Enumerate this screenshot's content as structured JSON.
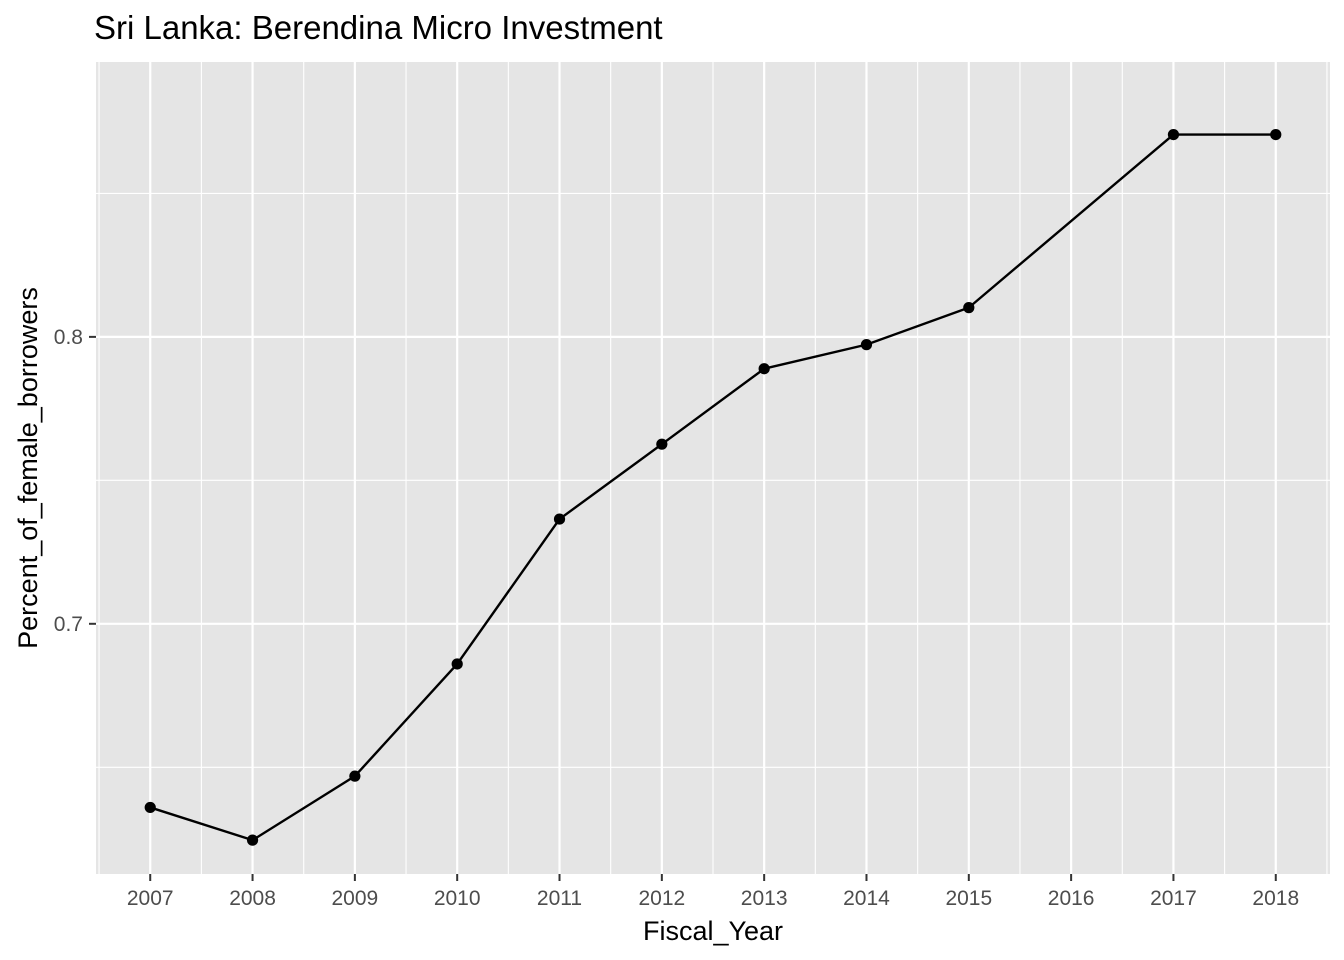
{
  "chart_data": {
    "type": "line",
    "title": "Sri Lanka:  Berendina Micro Investment",
    "xlabel": "Fiscal_Year",
    "ylabel": "Percent_of_female_borrowers",
    "x_ticks": [
      "2007",
      "2008",
      "2009",
      "2010",
      "2011",
      "2012",
      "2013",
      "2014",
      "2015",
      "2016",
      "2017",
      "2018"
    ],
    "y_ticks": [
      "0.7",
      "0.8"
    ],
    "xlim": [
      2006.47,
      2018.53
    ],
    "ylim": [
      0.6128,
      0.8958
    ],
    "grid": true,
    "legend": "none",
    "series": [
      {
        "x": [
          2007,
          2008,
          2009,
          2010,
          2011,
          2012,
          2013,
          2014,
          2015,
          2017,
          2018
        ],
        "values": [
          0.636,
          0.6246,
          0.6469,
          0.686,
          0.7365,
          0.7626,
          0.7889,
          0.7973,
          0.8102,
          0.8705,
          0.8705
        ]
      }
    ],
    "colors": {
      "panel": "#e5e5e5",
      "grid": "#ffffff",
      "line": "#000000",
      "tick_text": "#4d4d4d",
      "tick_mark": "#333333"
    }
  }
}
